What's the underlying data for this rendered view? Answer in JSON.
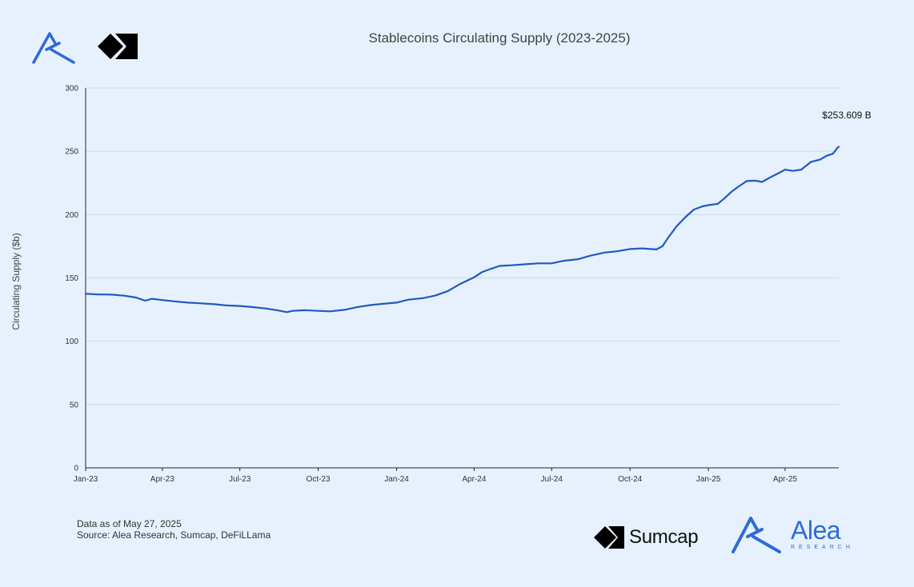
{
  "logos": {
    "top_alea_icon": "alea-logo-icon",
    "top_sumcap_icon": "sumcap-logo-icon",
    "bottom_sumcap_name": "Sumcap",
    "bottom_alea_name": "Alea",
    "bottom_alea_sub": "RESEARCH",
    "brand_blue": "#2f6ad6"
  },
  "footer": {
    "data_as_of": "Data as of May 27, 2025",
    "source": "Source: Alea Research, Sumcap, DeFiLLama"
  },
  "chart_data": {
    "type": "line",
    "title": "Stablecoins Circulating Supply (2023-2025)",
    "xlabel": "",
    "ylabel": "Circulating Supply ($b)",
    "ylim": [
      0,
      300
    ],
    "yticks": [
      0,
      50,
      100,
      150,
      200,
      250,
      300
    ],
    "xlim": [
      "2023-01-01",
      "2025-06-03"
    ],
    "xticks": [
      {
        "date": "2023-01-01",
        "label": "Jan-23"
      },
      {
        "date": "2023-04-01",
        "label": "Apr-23"
      },
      {
        "date": "2023-07-01",
        "label": "Jul-23"
      },
      {
        "date": "2023-10-01",
        "label": "Oct-23"
      },
      {
        "date": "2024-01-01",
        "label": "Jan-24"
      },
      {
        "date": "2024-04-01",
        "label": "Apr-24"
      },
      {
        "date": "2024-07-01",
        "label": "Jul-24"
      },
      {
        "date": "2024-10-01",
        "label": "Oct-24"
      },
      {
        "date": "2025-01-01",
        "label": "Jan-25"
      },
      {
        "date": "2025-04-01",
        "label": "Apr-25"
      }
    ],
    "grid": "horizontal",
    "line_color": "#2358c0",
    "annotation": "$253.609 B",
    "series": [
      {
        "points": [
          [
            "2023-01-01",
            137.5
          ],
          [
            "2023-01-15",
            137.0
          ],
          [
            "2023-02-01",
            136.8
          ],
          [
            "2023-02-15",
            136.0
          ],
          [
            "2023-03-01",
            134.5
          ],
          [
            "2023-03-12",
            132.0
          ],
          [
            "2023-03-20",
            133.5
          ],
          [
            "2023-04-01",
            132.5
          ],
          [
            "2023-04-15",
            131.5
          ],
          [
            "2023-05-01",
            130.5
          ],
          [
            "2023-05-15",
            130.0
          ],
          [
            "2023-06-01",
            129.2
          ],
          [
            "2023-06-15",
            128.3
          ],
          [
            "2023-07-01",
            127.8
          ],
          [
            "2023-07-15",
            127.0
          ],
          [
            "2023-08-01",
            125.8
          ],
          [
            "2023-08-15",
            124.3
          ],
          [
            "2023-08-25",
            123.0
          ],
          [
            "2023-09-01",
            124.0
          ],
          [
            "2023-09-15",
            124.5
          ],
          [
            "2023-10-01",
            124.0
          ],
          [
            "2023-10-15",
            123.6
          ],
          [
            "2023-11-01",
            124.8
          ],
          [
            "2023-11-15",
            126.8
          ],
          [
            "2023-12-01",
            128.5
          ],
          [
            "2023-12-15",
            129.5
          ],
          [
            "2024-01-01",
            130.5
          ],
          [
            "2024-01-15",
            132.8
          ],
          [
            "2024-02-01",
            134.0
          ],
          [
            "2024-02-15",
            136.0
          ],
          [
            "2024-03-01",
            139.5
          ],
          [
            "2024-03-15",
            145.0
          ],
          [
            "2024-04-01",
            150.5
          ],
          [
            "2024-04-10",
            154.5
          ],
          [
            "2024-04-20",
            157.0
          ],
          [
            "2024-05-01",
            159.5
          ],
          [
            "2024-05-15",
            160.0
          ],
          [
            "2024-06-01",
            160.8
          ],
          [
            "2024-06-15",
            161.5
          ],
          [
            "2024-07-01",
            161.5
          ],
          [
            "2024-07-15",
            163.5
          ],
          [
            "2024-08-01",
            164.8
          ],
          [
            "2024-08-15",
            167.5
          ],
          [
            "2024-09-01",
            170.0
          ],
          [
            "2024-09-15",
            171.0
          ],
          [
            "2024-10-01",
            172.8
          ],
          [
            "2024-10-15",
            173.3
          ],
          [
            "2024-11-01",
            172.5
          ],
          [
            "2024-11-08",
            175.0
          ],
          [
            "2024-11-15",
            182.0
          ],
          [
            "2024-11-25",
            191.0
          ],
          [
            "2024-12-05",
            198.0
          ],
          [
            "2024-12-15",
            204.0
          ],
          [
            "2024-12-25",
            206.5
          ],
          [
            "2025-01-01",
            207.5
          ],
          [
            "2025-01-12",
            208.5
          ],
          [
            "2025-01-20",
            213.0
          ],
          [
            "2025-01-28",
            218.0
          ],
          [
            "2025-02-05",
            222.0
          ],
          [
            "2025-02-15",
            226.5
          ],
          [
            "2025-02-25",
            226.8
          ],
          [
            "2025-03-05",
            225.8
          ],
          [
            "2025-03-15",
            229.5
          ],
          [
            "2025-03-25",
            233.0
          ],
          [
            "2025-04-01",
            235.5
          ],
          [
            "2025-04-10",
            234.5
          ],
          [
            "2025-04-20",
            235.5
          ],
          [
            "2025-05-01",
            241.5
          ],
          [
            "2025-05-12",
            243.5
          ],
          [
            "2025-05-20",
            246.5
          ],
          [
            "2025-05-27",
            248.0
          ],
          [
            "2025-05-30",
            250.5
          ],
          [
            "2025-06-01",
            252.5
          ],
          [
            "2025-06-03",
            253.6
          ]
        ]
      }
    ]
  }
}
